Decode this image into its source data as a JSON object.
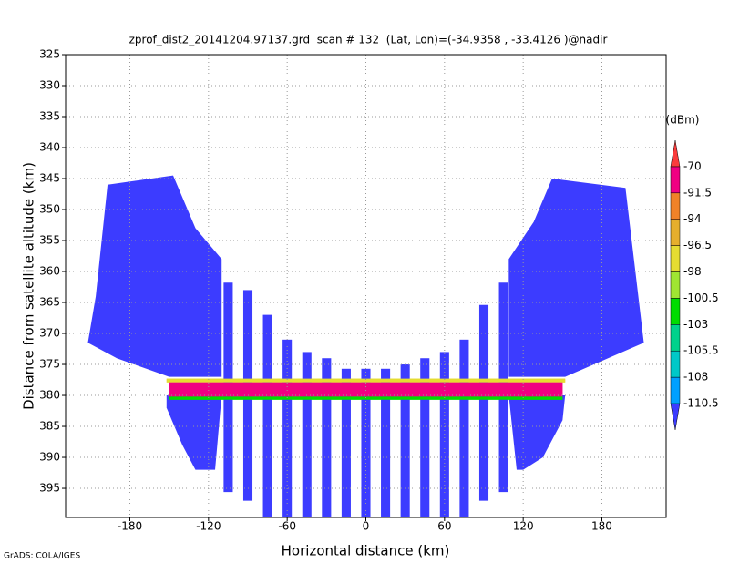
{
  "chart_data": {
    "type": "shaded",
    "title": "zprof_dist2_20141204.97137.grd  scan # 132  (Lat, Lon)=(-34.9358 , -33.4126 )@nadir",
    "x_label": "Horizontal distance (km)",
    "y_label": "Distance from satellite altitude (km)",
    "colorbar_label": "(dBm)",
    "footer": "GrADS: COLA/IGES",
    "xlim": [
      -229,
      229
    ],
    "xticks": [
      -180,
      -120,
      -60,
      0,
      60,
      120,
      180
    ],
    "ylim": [
      325,
      399.7
    ],
    "y_inverted": true,
    "yticks": [
      325,
      330,
      335,
      340,
      345,
      350,
      355,
      360,
      365,
      370,
      375,
      380,
      385,
      390,
      395
    ],
    "grid": true,
    "levels": [
      -110.5,
      -108,
      -105.5,
      -103,
      -100.5,
      -98,
      -96.5,
      -94,
      -91.5,
      -70
    ],
    "colors": [
      "#3c3cff",
      "#00a0ff",
      "#00c8c8",
      "#00d28c",
      "#00dc00",
      "#a0e632",
      "#e6dc32",
      "#e6af2d",
      "#f08228",
      "#f00082",
      "#fa3c3c"
    ],
    "beam_width": 7,
    "beams": [
      {
        "x": -105,
        "top": 361.8,
        "bottom": 395.6,
        "value": -112
      },
      {
        "x": -90,
        "top": 363,
        "bottom": 397,
        "value": -112
      },
      {
        "x": -75,
        "top": 367,
        "bottom": 399.7,
        "value": -112
      },
      {
        "x": -60,
        "top": 371,
        "bottom": 399.7,
        "value": -112
      },
      {
        "x": -45,
        "top": 373,
        "bottom": 399.7,
        "value": -112
      },
      {
        "x": -30,
        "top": 374,
        "bottom": 399.7,
        "value": -112
      },
      {
        "x": -15,
        "top": 375.7,
        "bottom": 399.7,
        "value": -112
      },
      {
        "x": 0,
        "top": 375.7,
        "bottom": 399.7,
        "value": -112
      },
      {
        "x": 15,
        "top": 375.7,
        "bottom": 399.7,
        "value": -112
      },
      {
        "x": 30,
        "top": 375,
        "bottom": 399.7,
        "value": -112
      },
      {
        "x": 45,
        "top": 374,
        "bottom": 399.7,
        "value": -112
      },
      {
        "x": 60,
        "top": 373,
        "bottom": 399.7,
        "value": -112
      },
      {
        "x": 75,
        "top": 371,
        "bottom": 399.7,
        "value": -112
      },
      {
        "x": 90,
        "top": 365.4,
        "bottom": 397,
        "value": -112
      },
      {
        "x": 105,
        "top": 361.8,
        "bottom": 395.6,
        "value": -112
      }
    ],
    "regions": [
      {
        "value": -112,
        "points": [
          [
            -197,
            346
          ],
          [
            -147,
            344.5
          ],
          [
            -130,
            353
          ],
          [
            -110,
            358
          ],
          [
            -110,
            377
          ],
          [
            -150,
            377
          ],
          [
            -190,
            374
          ],
          [
            -212,
            371.5
          ],
          [
            -206,
            364
          ]
        ]
      },
      {
        "value": -112,
        "points": [
          [
            -152,
            380
          ],
          [
            -110,
            380
          ],
          [
            -115,
            392
          ],
          [
            -130,
            392
          ],
          [
            -140,
            388
          ],
          [
            -152,
            382
          ]
        ]
      },
      {
        "value": -112,
        "points": [
          [
            142,
            345
          ],
          [
            198,
            346.5
          ],
          [
            212,
            371.5
          ],
          [
            152,
            377
          ],
          [
            109,
            377
          ],
          [
            109,
            358
          ],
          [
            128,
            352
          ]
        ]
      },
      {
        "value": -112,
        "points": [
          [
            109,
            380
          ],
          [
            152,
            380
          ],
          [
            150,
            384
          ],
          [
            135,
            390
          ],
          [
            120,
            392
          ],
          [
            115,
            392
          ]
        ]
      },
      {
        "value": -97,
        "points": [
          [
            -152,
            377.3
          ],
          [
            152,
            377.3
          ],
          [
            152,
            377.9
          ],
          [
            -152,
            377.9
          ]
        ]
      },
      {
        "value": -80,
        "points": [
          [
            -150,
            377.9
          ],
          [
            150,
            377.9
          ],
          [
            150,
            380.2
          ],
          [
            -150,
            380.2
          ]
        ]
      },
      {
        "value": -101,
        "points": [
          [
            -150,
            380.2
          ],
          [
            150,
            380.2
          ],
          [
            150,
            380.7
          ],
          [
            -150,
            380.7
          ]
        ]
      }
    ]
  }
}
